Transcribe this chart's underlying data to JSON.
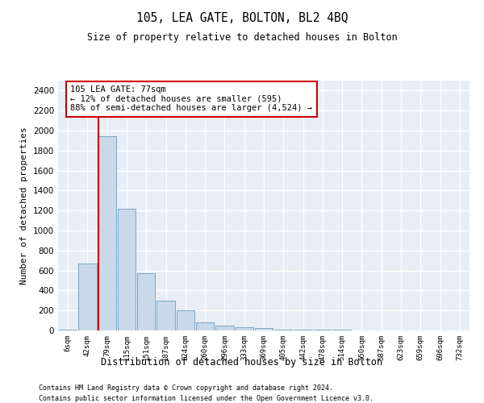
{
  "title": "105, LEA GATE, BOLTON, BL2 4BQ",
  "subtitle": "Size of property relative to detached houses in Bolton",
  "xlabel": "Distribution of detached houses by size in Bolton",
  "ylabel": "Number of detached properties",
  "footer_line1": "Contains HM Land Registry data © Crown copyright and database right 2024.",
  "footer_line2": "Contains public sector information licensed under the Open Government Licence v3.0.",
  "annotation_title": "105 LEA GATE: 77sqm",
  "annotation_line1": "← 12% of detached houses are smaller (595)",
  "annotation_line2": "88% of semi-detached houses are larger (4,524) →",
  "bar_color": "#c9d9ea",
  "bar_edge_color": "#6a9dc0",
  "marker_line_color": "#cc0000",
  "annotation_box_edgecolor": "#cc0000",
  "plot_bg_color": "#e8eef5",
  "categories": [
    "6sqm",
    "42sqm",
    "79sqm",
    "115sqm",
    "151sqm",
    "187sqm",
    "224sqm",
    "260sqm",
    "296sqm",
    "333sqm",
    "369sqm",
    "405sqm",
    "442sqm",
    "478sqm",
    "514sqm",
    "550sqm",
    "587sqm",
    "623sqm",
    "659sqm",
    "696sqm",
    "732sqm"
  ],
  "values": [
    10,
    670,
    1940,
    1220,
    570,
    300,
    200,
    80,
    45,
    35,
    25,
    10,
    5,
    5,
    5,
    3,
    2,
    2,
    2,
    2,
    2
  ],
  "marker_bin_index": 2,
  "ylim": [
    0,
    2500
  ],
  "yticks": [
    0,
    200,
    400,
    600,
    800,
    1000,
    1200,
    1400,
    1600,
    1800,
    2000,
    2200,
    2400
  ]
}
